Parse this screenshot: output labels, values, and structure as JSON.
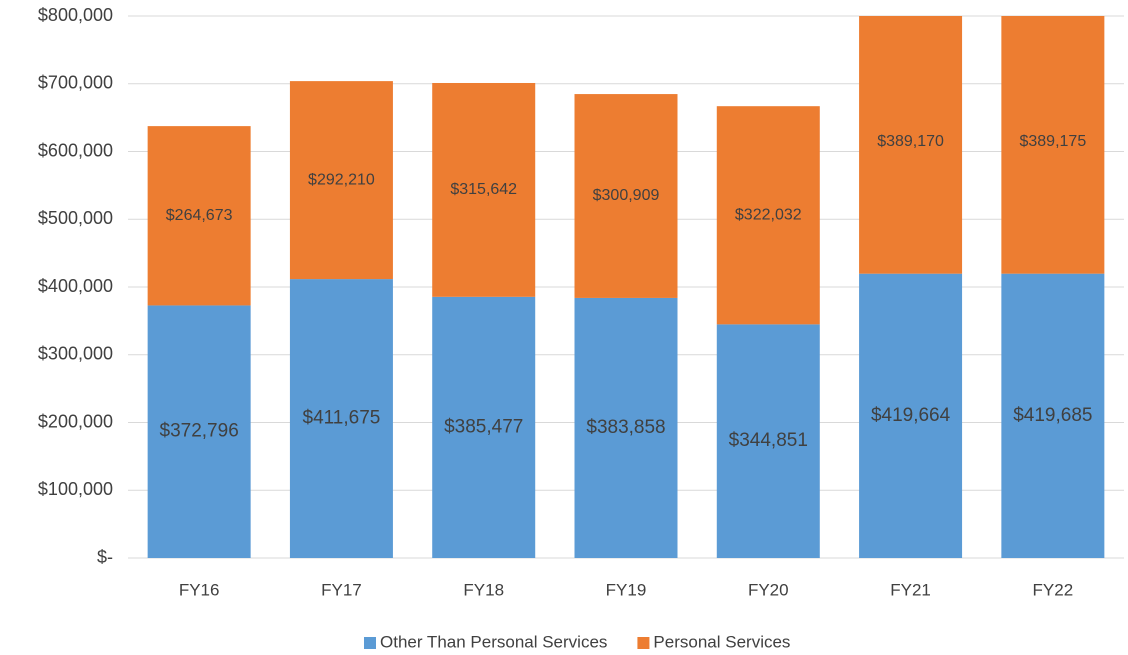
{
  "chart_data": {
    "type": "stacked_bar",
    "categories": [
      "FY16",
      "FY17",
      "FY18",
      "FY19",
      "FY20",
      "FY21",
      "FY22"
    ],
    "series": [
      {
        "name": "Other Than Personal Services",
        "color": "#5b9bd5",
        "values": [
          372796,
          411675,
          385477,
          383858,
          344851,
          419664,
          419685
        ],
        "value_labels": [
          "$372,796",
          "$411,675",
          "$385,477",
          "$383,858",
          "$344,851",
          "$419,664",
          "$419,685"
        ]
      },
      {
        "name": "Personal Services",
        "color": "#ed7d31",
        "values": [
          264673,
          292210,
          315642,
          300909,
          322032,
          389170,
          389175
        ],
        "value_labels": [
          "$264,673",
          "$292,210",
          "$315,642",
          "$300,909",
          "$322,032",
          "$389,170",
          "$389,175"
        ]
      }
    ],
    "ylim": [
      0,
      800000
    ],
    "yticks": [
      {
        "value": 0,
        "label": "$-"
      },
      {
        "value": 100000,
        "label": "$100,000"
      },
      {
        "value": 200000,
        "label": "$200,000"
      },
      {
        "value": 300000,
        "label": "$300,000"
      },
      {
        "value": 400000,
        "label": "$400,000"
      },
      {
        "value": 500000,
        "label": "$500,000"
      },
      {
        "value": 600000,
        "label": "$600,000"
      },
      {
        "value": 700000,
        "label": "$700,000"
      },
      {
        "value": 800000,
        "label": "$800,000"
      }
    ],
    "grid": true,
    "legend": "bottom"
  }
}
